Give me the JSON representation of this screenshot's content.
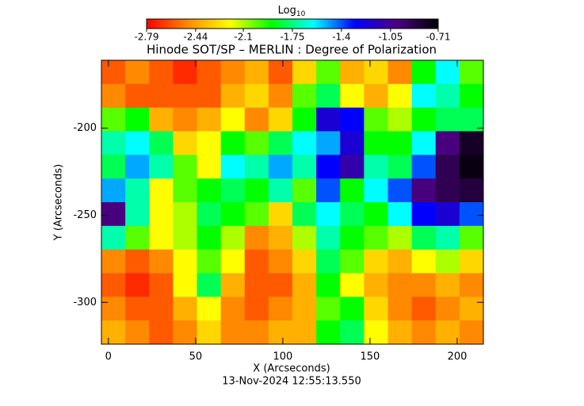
{
  "chart_data": {
    "type": "heatmap",
    "title": "Hinode SOT/SP – MERLIN : Degree of Polarization",
    "colorbar_title": "Log",
    "colorbar_title_subscript": "10",
    "xlabel": "X (Arcseconds)",
    "ylabel": "Y (Arcseconds)",
    "footer": "13-Nov-2024 12:55:13.550",
    "xlim": [
      -4,
      215
    ],
    "ylim": [
      -324,
      -161
    ],
    "xticks": [
      0,
      50,
      100,
      150,
      200
    ],
    "yticks": [
      -200,
      -250,
      -300
    ],
    "zlim": [
      -2.79,
      -0.71
    ],
    "cticks": [
      -2.79,
      -2.44,
      -2.1,
      -1.75,
      -1.4,
      -1.05,
      -0.71
    ],
    "colormap": [
      "#ff0000",
      "#ff8c00",
      "#ffff00",
      "#00ff00",
      "#00ffff",
      "#0000ff",
      "#4b0082",
      "#000000"
    ],
    "z": [
      [
        -2.6,
        -2.5,
        -2.6,
        -2.7,
        -2.6,
        -2.5,
        -2.4,
        -2.6,
        -2.3,
        -2.0,
        -2.4,
        -2.3,
        -2.5,
        -1.9,
        -1.6,
        -2.0
      ],
      [
        -2.5,
        -2.6,
        -2.6,
        -2.6,
        -2.6,
        -2.4,
        -2.3,
        -2.5,
        -2.0,
        -1.8,
        -2.2,
        -2.4,
        -2.2,
        -1.6,
        -1.7,
        -1.9
      ],
      [
        -2.0,
        -1.9,
        -2.4,
        -2.5,
        -2.4,
        -2.2,
        -2.5,
        -2.3,
        -1.9,
        -1.2,
        -1.3,
        -2.0,
        -2.1,
        -1.9,
        -1.8,
        -1.8
      ],
      [
        -1.7,
        -1.6,
        -1.8,
        -2.3,
        -2.2,
        -1.9,
        -2.0,
        -1.8,
        -1.6,
        -1.5,
        -1.2,
        -1.9,
        -1.9,
        -1.6,
        -1.0,
        -0.8
      ],
      [
        -1.8,
        -1.5,
        -1.7,
        -2.0,
        -2.2,
        -1.6,
        -1.7,
        -1.5,
        -1.7,
        -1.3,
        -1.1,
        -1.7,
        -1.8,
        -1.4,
        -0.9,
        -0.75
      ],
      [
        -1.5,
        -1.7,
        -2.2,
        -2.0,
        -1.9,
        -1.8,
        -1.9,
        -1.7,
        -2.0,
        -1.4,
        -1.9,
        -1.6,
        -1.4,
        -1.0,
        -0.9,
        -0.85
      ],
      [
        -1.0,
        -1.7,
        -2.2,
        -2.1,
        -1.8,
        -1.9,
        -2.0,
        -2.3,
        -1.8,
        -1.6,
        -1.8,
        -1.9,
        -1.6,
        -1.3,
        -1.2,
        -1.4
      ],
      [
        -1.7,
        -2.0,
        -2.2,
        -2.1,
        -1.9,
        -2.1,
        -2.5,
        -2.4,
        -2.1,
        -1.7,
        -1.9,
        -2.0,
        -2.1,
        -1.8,
        -1.7,
        -2.0
      ],
      [
        -2.5,
        -2.6,
        -2.5,
        -2.2,
        -2.0,
        -2.2,
        -2.6,
        -2.5,
        -2.3,
        -1.8,
        -2.0,
        -2.3,
        -2.4,
        -2.2,
        -2.1,
        -2.3
      ],
      [
        -2.6,
        -2.7,
        -2.6,
        -2.2,
        -1.8,
        -2.4,
        -2.6,
        -2.6,
        -2.4,
        -1.9,
        -2.2,
        -2.4,
        -2.5,
        -2.5,
        -2.4,
        -2.5
      ],
      [
        -2.5,
        -2.6,
        -2.6,
        -2.4,
        -2.2,
        -2.5,
        -2.6,
        -2.5,
        -2.4,
        -2.0,
        -1.9,
        -2.3,
        -2.5,
        -2.6,
        -2.5,
        -2.4
      ],
      [
        -2.4,
        -2.5,
        -2.6,
        -2.5,
        -2.3,
        -2.5,
        -2.5,
        -2.4,
        -2.4,
        -1.9,
        -1.8,
        -2.2,
        -2.4,
        -2.5,
        -2.4,
        -2.5
      ]
    ]
  }
}
